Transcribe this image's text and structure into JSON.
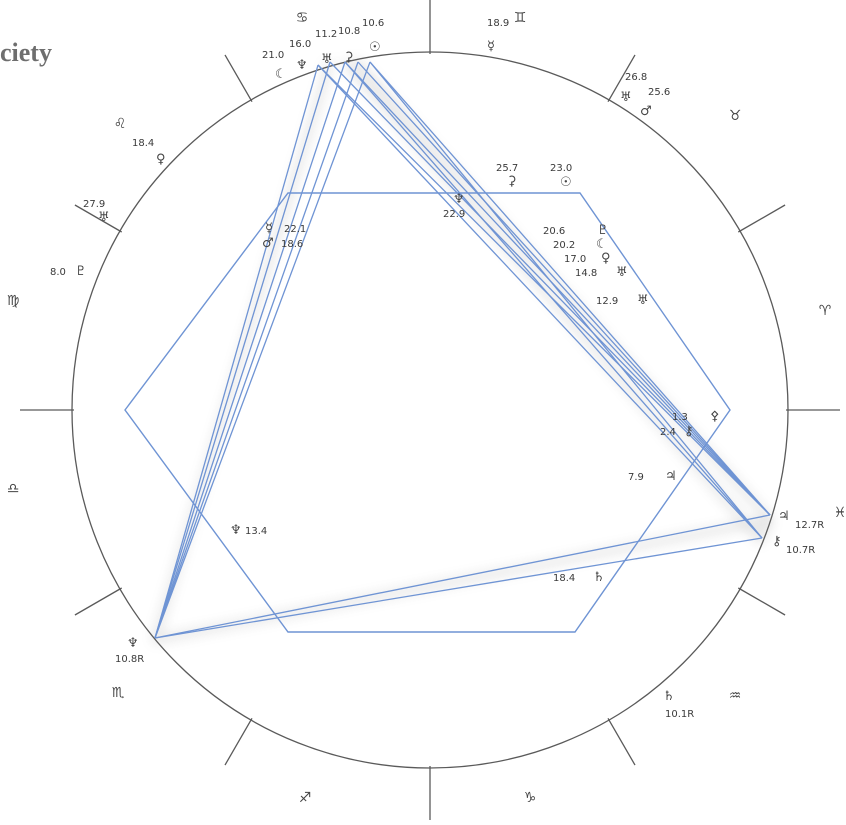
{
  "header": {
    "title_fragment": "ciety"
  },
  "colors": {
    "line": "#6f94d4",
    "wheel": "#5a5a5a",
    "text": "#3a3a3a"
  },
  "signs": [
    {
      "name": "gemini",
      "glyph": "♊"
    },
    {
      "name": "taurus",
      "glyph": "♉"
    },
    {
      "name": "aries",
      "glyph": "♈"
    },
    {
      "name": "pisces",
      "glyph": "♓"
    },
    {
      "name": "aquarius",
      "glyph": "♒"
    },
    {
      "name": "capricorn",
      "glyph": "♑"
    },
    {
      "name": "sagittarius",
      "glyph": "♐"
    },
    {
      "name": "scorpio",
      "glyph": "♏"
    },
    {
      "name": "libra",
      "glyph": "♎"
    },
    {
      "name": "virgo",
      "glyph": "♍"
    },
    {
      "name": "leo",
      "glyph": "♌"
    },
    {
      "name": "cancer",
      "glyph": "♋"
    }
  ],
  "outer_labels": [
    {
      "name": "cancer-cluster-moon",
      "glyph": "☾",
      "value": "21.0"
    },
    {
      "name": "cancer-cluster-neptune",
      "glyph": "♆",
      "value": "16.0"
    },
    {
      "name": "cancer-cluster-uranus",
      "glyph": "♅",
      "value": "11.2"
    },
    {
      "name": "cancer-cluster-juno",
      "glyph": "⚳",
      "value": "10.8"
    },
    {
      "name": "cancer-cluster-sun",
      "glyph": "☉",
      "value": "10.6"
    },
    {
      "name": "gemini-mercury",
      "glyph": "☿",
      "value": "18.9"
    },
    {
      "name": "taurus-uranus",
      "glyph": "♅",
      "value": "26.8"
    },
    {
      "name": "taurus-mars",
      "glyph": "♂",
      "value": "25.6"
    },
    {
      "name": "leo-venus",
      "glyph": "♀",
      "value": "18.4"
    },
    {
      "name": "leo-uranus-b",
      "glyph": "♅",
      "value": "27.9"
    },
    {
      "name": "virgo-pluto",
      "glyph": "♇",
      "value": "8.0"
    },
    {
      "name": "pisces-jupiter",
      "glyph": "♃",
      "value": "12.7R"
    },
    {
      "name": "pisces-chiron",
      "glyph": "⚷",
      "value": "10.7R"
    },
    {
      "name": "scorpio-neptune",
      "glyph": "♆",
      "value": "10.8R"
    },
    {
      "name": "aquarius-saturn",
      "glyph": "♄",
      "value": "10.1R"
    }
  ],
  "inner_labels": [
    {
      "name": "inner-juno",
      "glyph": "⚳",
      "value": "25.7"
    },
    {
      "name": "inner-sun",
      "glyph": "☉",
      "value": "23.0"
    },
    {
      "name": "inner-neptune",
      "glyph": "♆",
      "value": "22.9"
    },
    {
      "name": "inner-mercury",
      "glyph": "☿",
      "value": "22.1"
    },
    {
      "name": "inner-mars",
      "glyph": "♂",
      "value": "18.6"
    },
    {
      "name": "inner-pluto",
      "glyph": "♇",
      "value": "20.6"
    },
    {
      "name": "inner-moon",
      "glyph": "☾",
      "value": "20.2"
    },
    {
      "name": "inner-venus",
      "glyph": "♀",
      "value": "17.0"
    },
    {
      "name": "inner-uranus",
      "glyph": "♅",
      "value": "14.8"
    },
    {
      "name": "inner-uranus-b",
      "glyph": "♅",
      "value": "12.9"
    },
    {
      "name": "inner-pallas",
      "glyph": "⚴",
      "value": "1.3"
    },
    {
      "name": "inner-chiron",
      "glyph": "⚷",
      "value": "2.4"
    },
    {
      "name": "inner-jupiter",
      "glyph": "♃",
      "value": "7.9"
    },
    {
      "name": "inner-neptune-b",
      "glyph": "♆",
      "value": "13.4"
    },
    {
      "name": "inner-saturn",
      "glyph": "♄",
      "value": "18.4"
    }
  ]
}
